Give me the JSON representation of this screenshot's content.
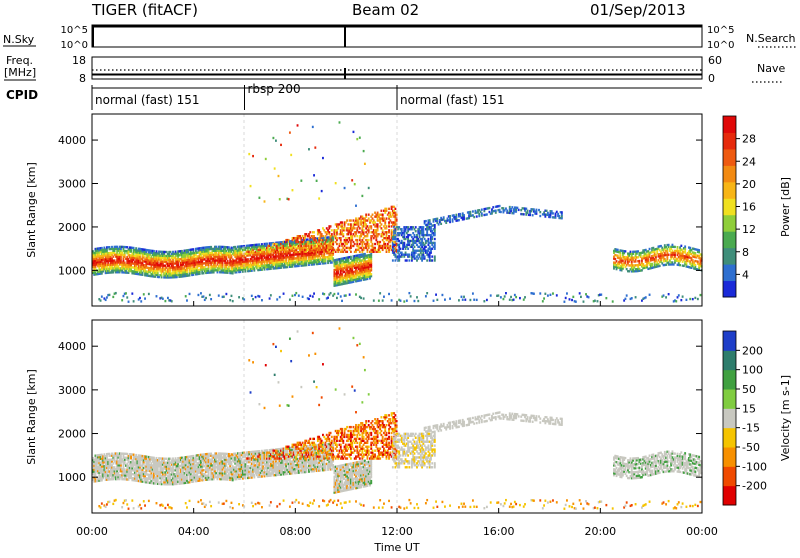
{
  "header": {
    "radar": "TIGER (fitACF)",
    "beam": "Beam 02",
    "date": "01/Sep/2013"
  },
  "strips": {
    "nsky": {
      "label": "N.Sky",
      "ticks": [
        "10^5",
        "10^0"
      ]
    },
    "nsearch": {
      "label": "N.Search",
      "ticks": [
        "10^5",
        "10^0"
      ]
    },
    "freq": {
      "label1": "Freq.",
      "label2": "[MHz]",
      "ticks": [
        "18",
        "8"
      ]
    },
    "nave": {
      "label": "Nave",
      "ticks": [
        "60",
        "0"
      ]
    },
    "cpid": {
      "label": "CPID",
      "segments": [
        {
          "start": 0,
          "end": 6,
          "text": "normal (fast) 151"
        },
        {
          "start": 6,
          "end": 12,
          "text": "rbsp 200"
        },
        {
          "start": 12,
          "end": 24,
          "text": "normal (fast) 151"
        }
      ]
    }
  },
  "colors": {
    "power": [
      "#1a2ad8",
      "#2e6fd0",
      "#3f8e7a",
      "#4aaa4f",
      "#8fce3a",
      "#f0e020",
      "#f7b516",
      "#f28a12",
      "#ee5a10",
      "#e62a0c",
      "#e00808"
    ],
    "velocity": [
      "#e00000",
      "#f04a00",
      "#f79000",
      "#f5c400",
      "#c8c8c0",
      "#80cc40",
      "#40a040",
      "#2e7d6c",
      "#1e3ec8"
    ]
  },
  "chart_data": [
    {
      "type": "heatmap",
      "quantity": "Power",
      "ylabel": "Slant Range [km]",
      "ylim": [
        180,
        4600
      ],
      "xlim": [
        0,
        24
      ],
      "yticks": [
        "1000",
        "2000",
        "3000",
        "4000"
      ],
      "ytick_values": [
        1000,
        2000,
        3000,
        4000
      ],
      "colorbar": {
        "label": "Power [dB]",
        "range": [
          0,
          32
        ],
        "ticks": [
          "4",
          "8",
          "12",
          "16",
          "20",
          "24",
          "28"
        ]
      }
    },
    {
      "type": "heatmap",
      "quantity": "Velocity",
      "ylabel": "Slant Range [km]",
      "xlabel": "Time UT",
      "ylim": [
        180,
        4600
      ],
      "xlim": [
        0,
        24
      ],
      "yticks": [
        "1000",
        "2000",
        "3000",
        "4000"
      ],
      "ytick_values": [
        1000,
        2000,
        3000,
        4000
      ],
      "xticks": [
        "00:00",
        "04:00",
        "08:00",
        "12:00",
        "16:00",
        "20:00",
        "00:00"
      ],
      "xtick_values": [
        0,
        4,
        8,
        12,
        16,
        20,
        24
      ],
      "colorbar": {
        "label": "Velocity [m s-1]",
        "ticks": [
          "200",
          "100",
          "50",
          "15",
          "-15",
          "-50",
          "-100",
          "-200"
        ]
      }
    }
  ]
}
